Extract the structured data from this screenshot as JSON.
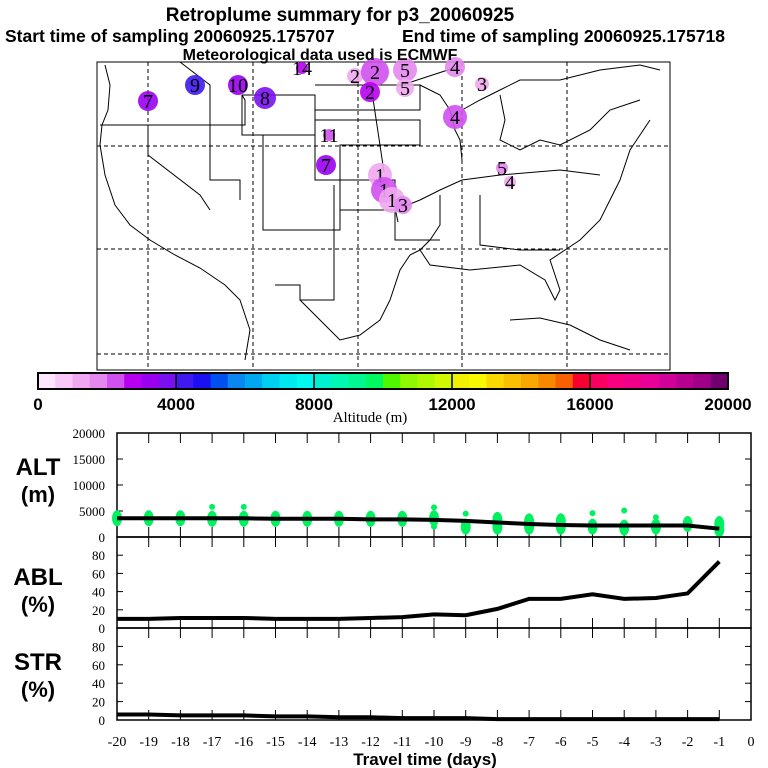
{
  "header": {
    "title": "Retroplume summary for p3_20060925",
    "start_label": "Start time of sampling 20060925.175707",
    "end_label": "End time of sampling 20060925.175718",
    "met_label": "Meteorological data used is ECMWF"
  },
  "map": {
    "markers": [
      {
        "label": "7",
        "color": "#9a00f0"
      },
      {
        "label": "9",
        "color": "#4018f0"
      },
      {
        "label": "10",
        "color": "#9a00f0"
      },
      {
        "label": "8",
        "color": "#7a10f0"
      },
      {
        "label": "14",
        "color": "#b800f0"
      },
      {
        "label": "11",
        "color": "#d050f0"
      },
      {
        "label": "7",
        "color": "#9a00f0"
      },
      {
        "label": "2",
        "color": "#f0a8f0"
      },
      {
        "label": "2",
        "color": "#d050f0"
      },
      {
        "label": "2",
        "color": "#b800f0"
      },
      {
        "label": "5",
        "color": "#e488f0"
      },
      {
        "label": "5",
        "color": "#f0a8f0"
      },
      {
        "label": "4",
        "color": "#e488f0"
      },
      {
        "label": "3",
        "color": "#f0a8f0"
      },
      {
        "label": "4",
        "color": "#d050f0"
      },
      {
        "label": "1",
        "color": "#f0a8f0"
      },
      {
        "label": "1",
        "color": "#d050f0"
      },
      {
        "label": "1",
        "color": "#f0a8f0"
      },
      {
        "label": "3",
        "color": "#e488f0"
      },
      {
        "label": "5",
        "color": "#e488f0"
      },
      {
        "label": "4",
        "color": "#f0a8f0"
      }
    ]
  },
  "colorbar": {
    "label": "Altitude (m)",
    "ticks": [
      "0",
      "4000",
      "8000",
      "12000",
      "16000",
      "20000"
    ],
    "range": [
      0,
      20000
    ],
    "colors": [
      "#ffe6ff",
      "#f8c8f8",
      "#f0a8f0",
      "#e488f0",
      "#d050f0",
      "#b800f0",
      "#9a00f0",
      "#7a10f0",
      "#4018f0",
      "#1a10f0",
      "#0050f0",
      "#0a88f0",
      "#00a8f0",
      "#00d0f0",
      "#00e8f0",
      "#00f8f0",
      "#00f0d0",
      "#00f8b0",
      "#00f890",
      "#00f860",
      "#50f800",
      "#90f800",
      "#b0f800",
      "#d0f800",
      "#f0f000",
      "#f8f800",
      "#f8d800",
      "#f8c000",
      "#f8a800",
      "#f88800",
      "#f86000",
      "#f80030",
      "#f80060",
      "#f80080",
      "#f00088",
      "#e80098",
      "#d00098",
      "#b80090",
      "#a00088",
      "#700070"
    ]
  },
  "chart_data": [
    {
      "type": "line",
      "panel": "ALT",
      "ylabel": "ALT",
      "yunit": "(m)",
      "ylim": [
        0,
        20000
      ],
      "yticks": [
        "0",
        "5000",
        "10000",
        "15000",
        "20000"
      ],
      "x": [
        -20,
        -19,
        -18,
        -17,
        -16,
        -15,
        -14,
        -13,
        -12,
        -11,
        -10,
        -9,
        -8,
        -7,
        -6,
        -5,
        -4,
        -3,
        -2,
        -1
      ],
      "values": [
        3600,
        3600,
        3600,
        3600,
        3600,
        3500,
        3500,
        3500,
        3400,
        3400,
        3300,
        3100,
        2800,
        2500,
        2300,
        2200,
        2200,
        2200,
        2200,
        1600
      ],
      "particle_altitudes": [
        [
          3600
        ],
        [
          3600
        ],
        [
          3600
        ],
        [
          3500,
          5800
        ],
        [
          3500,
          5800
        ],
        [
          3500
        ],
        [
          3500
        ],
        [
          3500
        ],
        [
          3500
        ],
        [
          3500
        ],
        [
          3600,
          2000,
          5700
        ],
        [
          4500,
          2000
        ],
        [
          3300,
          2000
        ],
        [
          3000,
          2000
        ],
        [
          3000,
          2000,
          4000
        ],
        [
          2000,
          4600
        ],
        [
          1800,
          5100
        ],
        [
          2000,
          3800
        ],
        [
          2500
        ],
        [
          1500,
          2500
        ]
      ],
      "particle_color": "#00f060"
    },
    {
      "type": "line",
      "panel": "ABL",
      "ylabel": "ABL",
      "yunit": "(%)",
      "ylim": [
        0,
        100
      ],
      "yticks": [
        "0",
        "20",
        "40",
        "60",
        "80"
      ],
      "x": [
        -20,
        -19,
        -18,
        -17,
        -16,
        -15,
        -14,
        -13,
        -12,
        -11,
        -10,
        -9,
        -8,
        -7,
        -6,
        -5,
        -4,
        -3,
        -2,
        -1
      ],
      "values": [
        10,
        10,
        11,
        11,
        11,
        10,
        10,
        10,
        11,
        12,
        15,
        14,
        21,
        32,
        32,
        37,
        32,
        33,
        38,
        73
      ]
    },
    {
      "type": "line",
      "panel": "STR",
      "ylabel": "STR",
      "yunit": "(%)",
      "ylim": [
        0,
        100
      ],
      "yticks": [
        "0",
        "20",
        "40",
        "60",
        "80"
      ],
      "x": [
        -20,
        -19,
        -18,
        -17,
        -16,
        -15,
        -14,
        -13,
        -12,
        -11,
        -10,
        -9,
        -8,
        -7,
        -6,
        -5,
        -4,
        -3,
        -2,
        -1
      ],
      "values": [
        6,
        6,
        5,
        5,
        5,
        4,
        4,
        3,
        3,
        2,
        2,
        2,
        1,
        1,
        1,
        1,
        1,
        1,
        1,
        1
      ],
      "xlabel": "Travel time (days)",
      "xticks": [
        "-20",
        "-19",
        "-18",
        "-17",
        "-16",
        "-15",
        "-14",
        "-13",
        "-12",
        "-11",
        "-10",
        "-9",
        "-8",
        "-7",
        "-6",
        "-5",
        "-4",
        "-3",
        "-2",
        "-1",
        "0"
      ],
      "xlim": [
        -20,
        0
      ]
    }
  ]
}
